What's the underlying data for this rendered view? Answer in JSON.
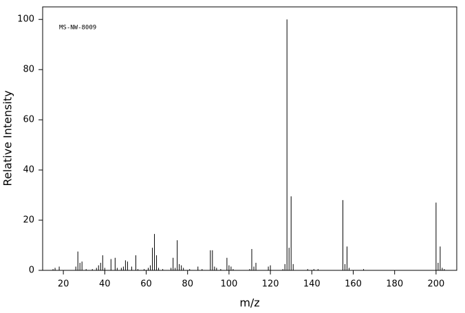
{
  "chart_data": {
    "type": "stem",
    "annotation": "MS-NW-8009",
    "xlabel": "m/z",
    "ylabel": "Relative Intensity",
    "x": [
      15,
      16,
      18,
      26,
      27,
      28,
      29,
      31,
      34,
      36,
      37,
      38,
      39,
      40,
      43,
      45,
      46,
      48,
      49,
      50,
      51,
      53,
      55,
      56,
      59,
      61,
      62,
      63,
      64,
      65,
      66,
      68,
      72,
      73,
      74,
      75,
      76,
      77,
      78,
      81,
      85,
      87,
      91,
      92,
      93,
      94,
      96,
      99,
      100,
      101,
      102,
      110,
      111,
      112,
      113,
      119,
      120,
      126,
      127,
      128,
      129,
      130,
      131,
      138,
      141,
      143,
      155,
      156,
      157,
      158,
      165,
      200,
      201,
      202,
      203,
      204
    ],
    "values": [
      0.5,
      1,
      1.5,
      1.5,
      7.5,
      3,
      3.5,
      0.5,
      0.5,
      1,
      2,
      3,
      6,
      1,
      4.5,
      5,
      1,
      1,
      1.5,
      4,
      3.5,
      1.5,
      6,
      0.5,
      0.5,
      1,
      2,
      9,
      14.5,
      6,
      1,
      0.5,
      1,
      5,
      1,
      12,
      2.5,
      2,
      1,
      0.5,
      1.5,
      0.5,
      8,
      8,
      1.5,
      1,
      0.5,
      5,
      2,
      1.5,
      0.5,
      0.5,
      8.5,
      1.5,
      3,
      1.5,
      2,
      0.5,
      2.5,
      100,
      9,
      29.5,
      2.5,
      0.5,
      0.5,
      0.5,
      28,
      2.5,
      9.5,
      1,
      0.5,
      27,
      3,
      9.5,
      1,
      0.5
    ],
    "color": "#000000",
    "xlim": [
      10,
      210
    ],
    "xticks": [
      20,
      40,
      60,
      80,
      100,
      120,
      140,
      160,
      180,
      200
    ],
    "ylim": [
      0,
      105
    ],
    "yticks": [
      0,
      20,
      40,
      60,
      80,
      100
    ]
  }
}
